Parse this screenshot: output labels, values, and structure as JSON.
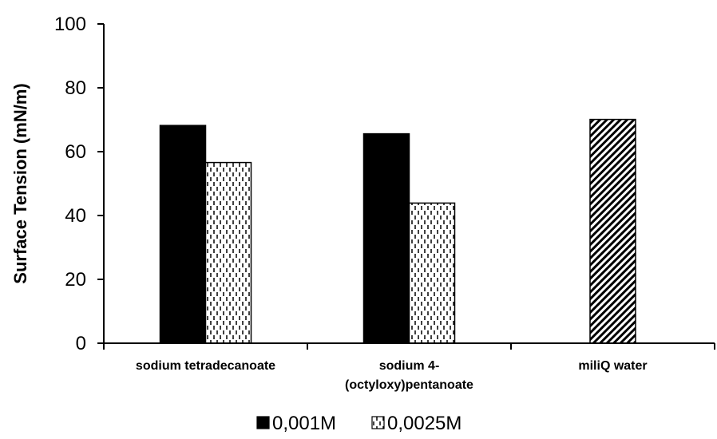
{
  "chart_data": {
    "type": "bar",
    "title": "",
    "xlabel": "",
    "ylabel": "Surface Tension (mN/m)",
    "ylim": [
      0,
      100
    ],
    "yticks": [
      "0",
      "20",
      "40",
      "60",
      "80",
      "100"
    ],
    "categories": [
      [
        "sodium tetradecanoate"
      ],
      [
        "sodium 4-",
        "(octyloxy)pentanoate"
      ],
      [
        "miliQ water"
      ]
    ],
    "series": [
      {
        "name": "0,001M",
        "values": [
          68.2,
          65.6,
          70.1
        ],
        "patterns": [
          "solid",
          "solid",
          "diagonal"
        ]
      },
      {
        "name": "0,0025M",
        "values": [
          56.6,
          43.9,
          null
        ],
        "patterns": [
          "dashes",
          "dashes",
          "dashes"
        ]
      }
    ],
    "grid": false,
    "legend_position": "bottom"
  },
  "colors": {
    "bar_fill": "#000000",
    "pattern_background": "#ffffff"
  }
}
